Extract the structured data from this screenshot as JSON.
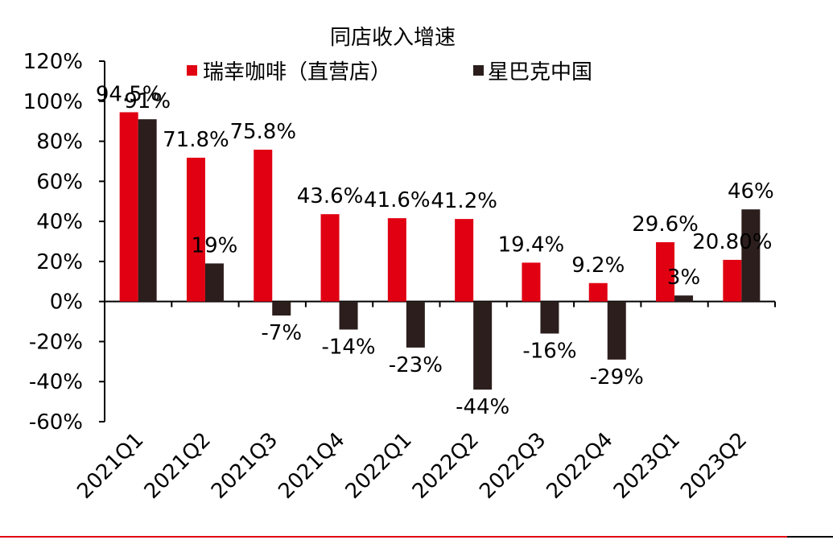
{
  "chart_data": {
    "type": "bar",
    "title": "同店收入增速",
    "categories": [
      "2021Q1",
      "2021Q2",
      "2021Q3",
      "2021Q4",
      "2022Q1",
      "2022Q2",
      "2022Q3",
      "2022Q4",
      "2023Q1",
      "2023Q2"
    ],
    "series": [
      {
        "name": "瑞幸咖啡（直营店）",
        "color": "#e00012",
        "values": [
          94.5,
          71.8,
          75.8,
          43.6,
          41.6,
          41.2,
          19.4,
          9.2,
          29.6,
          20.8
        ],
        "labels": [
          "94.5%",
          "71.8%",
          "75.8%",
          "43.6%",
          "41.6%",
          "41.2%",
          "19.4%",
          "9.2%",
          "29.6%",
          "20.80%"
        ]
      },
      {
        "name": "星巴克中国",
        "color": "#2b1e1c",
        "values": [
          91,
          19,
          -7,
          -14,
          -23,
          -44,
          -16,
          -29,
          3,
          46
        ],
        "labels": [
          "91%",
          "19%",
          "-7%",
          "-14%",
          "-23%",
          "-44%",
          "-16%",
          "-29%",
          "3%",
          "46%"
        ]
      }
    ],
    "ylim": [
      -60,
      120
    ],
    "yticks": [
      "-60%",
      "-40%",
      "-20%",
      "0%",
      "20%",
      "40%",
      "60%",
      "80%",
      "100%",
      "120%"
    ],
    "xlabel": "",
    "ylabel": "",
    "grid": false,
    "legend": "top"
  },
  "colors": {
    "footer_line": "#e00012"
  }
}
